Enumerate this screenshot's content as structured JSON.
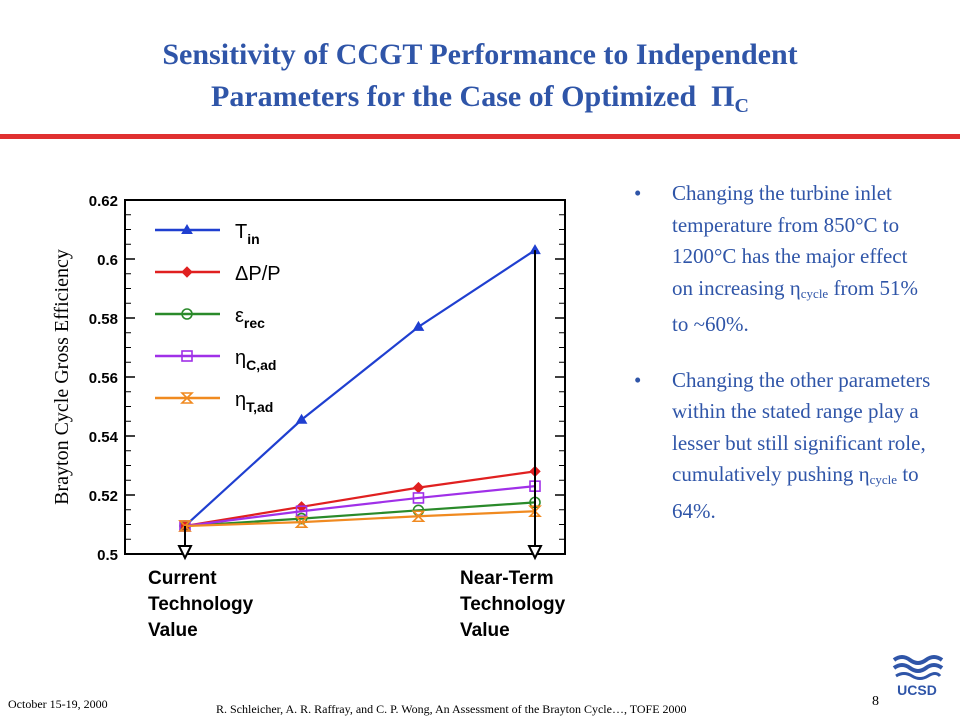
{
  "title": {
    "line1": "Sensitivity of CCGT Performance to Independent",
    "line2": "Parameters for the Case of Optimized",
    "pi_symbol": "Π",
    "pi_sub": "C"
  },
  "bullets": [
    {
      "bullet_char": "•",
      "text_before": "Changing the turbine inlet temperature from 850°C to 1200°C has the major effect on increasing ",
      "eta": "η",
      "eta_sub": "cycle",
      "text_after": " from 51% to ~60%."
    },
    {
      "bullet_char": "•",
      "text_before": "Changing the other parameters within the stated range play a lesser but still significant role, cumulatively pushing ",
      "eta": "η",
      "eta_sub": "cycle",
      "text_after": " to 64%."
    }
  ],
  "footer": {
    "date": "October 15-19, 2000",
    "citation": "R. Schleicher, A. R. Raffray, and C. P. Wong, An Assessment of the Brayton Cycle…, TOFE 2000",
    "page": "8",
    "logo_text": "UCSD"
  },
  "colors": {
    "title": "#2f55a8",
    "rule": "#e03030",
    "Tin": "#1f3fd0",
    "dPP": "#e02020",
    "eps": "#2a8a2a",
    "etaC": "#a030e8",
    "etaT": "#f08a20"
  },
  "chart_data": {
    "type": "line",
    "ylabel": "Brayton Cycle Gross Efficiency",
    "ylim": [
      0.5,
      0.62
    ],
    "yticks": [
      "0.5",
      "0.52",
      "0.54",
      "0.56",
      "0.58",
      "0.6",
      "0.62"
    ],
    "grid": false,
    "legend_placement": "top-left",
    "x_labels": [
      {
        "lines": [
          "Current",
          "Technology",
          "Value"
        ]
      },
      {
        "lines": [
          "Near-Term",
          "Technology",
          "Value"
        ]
      }
    ],
    "series": [
      {
        "name": "T",
        "sub": "in",
        "marker": "triangle",
        "color": "#1f3fd0",
        "x": [
          0,
          0.333,
          0.667,
          1
        ],
        "y": [
          0.5095,
          0.5455,
          0.577,
          0.603
        ]
      },
      {
        "name": "ΔP/P",
        "sub": "",
        "marker": "diamond",
        "color": "#e02020",
        "x": [
          0,
          0.333,
          0.667,
          1
        ],
        "y": [
          0.5095,
          0.516,
          0.5225,
          0.528
        ]
      },
      {
        "name": "ε",
        "sub": "rec",
        "marker": "circle",
        "color": "#2a8a2a",
        "x": [
          0,
          0.333,
          0.667,
          1
        ],
        "y": [
          0.5095,
          0.512,
          0.5148,
          0.5175
        ]
      },
      {
        "name": "η",
        "sub": "C,ad",
        "marker": "square",
        "color": "#a030e8",
        "x": [
          0,
          0.333,
          0.667,
          1
        ],
        "y": [
          0.5095,
          0.5145,
          0.519,
          0.523
        ]
      },
      {
        "name": "η",
        "sub": "T,ad",
        "marker": "hourglass",
        "color": "#f08a20",
        "x": [
          0,
          0.333,
          0.667,
          1
        ],
        "y": [
          0.5095,
          0.5108,
          0.5128,
          0.5145
        ]
      }
    ],
    "arrows": [
      {
        "x": 0,
        "y_top": 0.5095,
        "y_bottom": 0.5
      },
      {
        "x": 1,
        "y_top": 0.603,
        "y_bottom": 0.5
      }
    ]
  }
}
